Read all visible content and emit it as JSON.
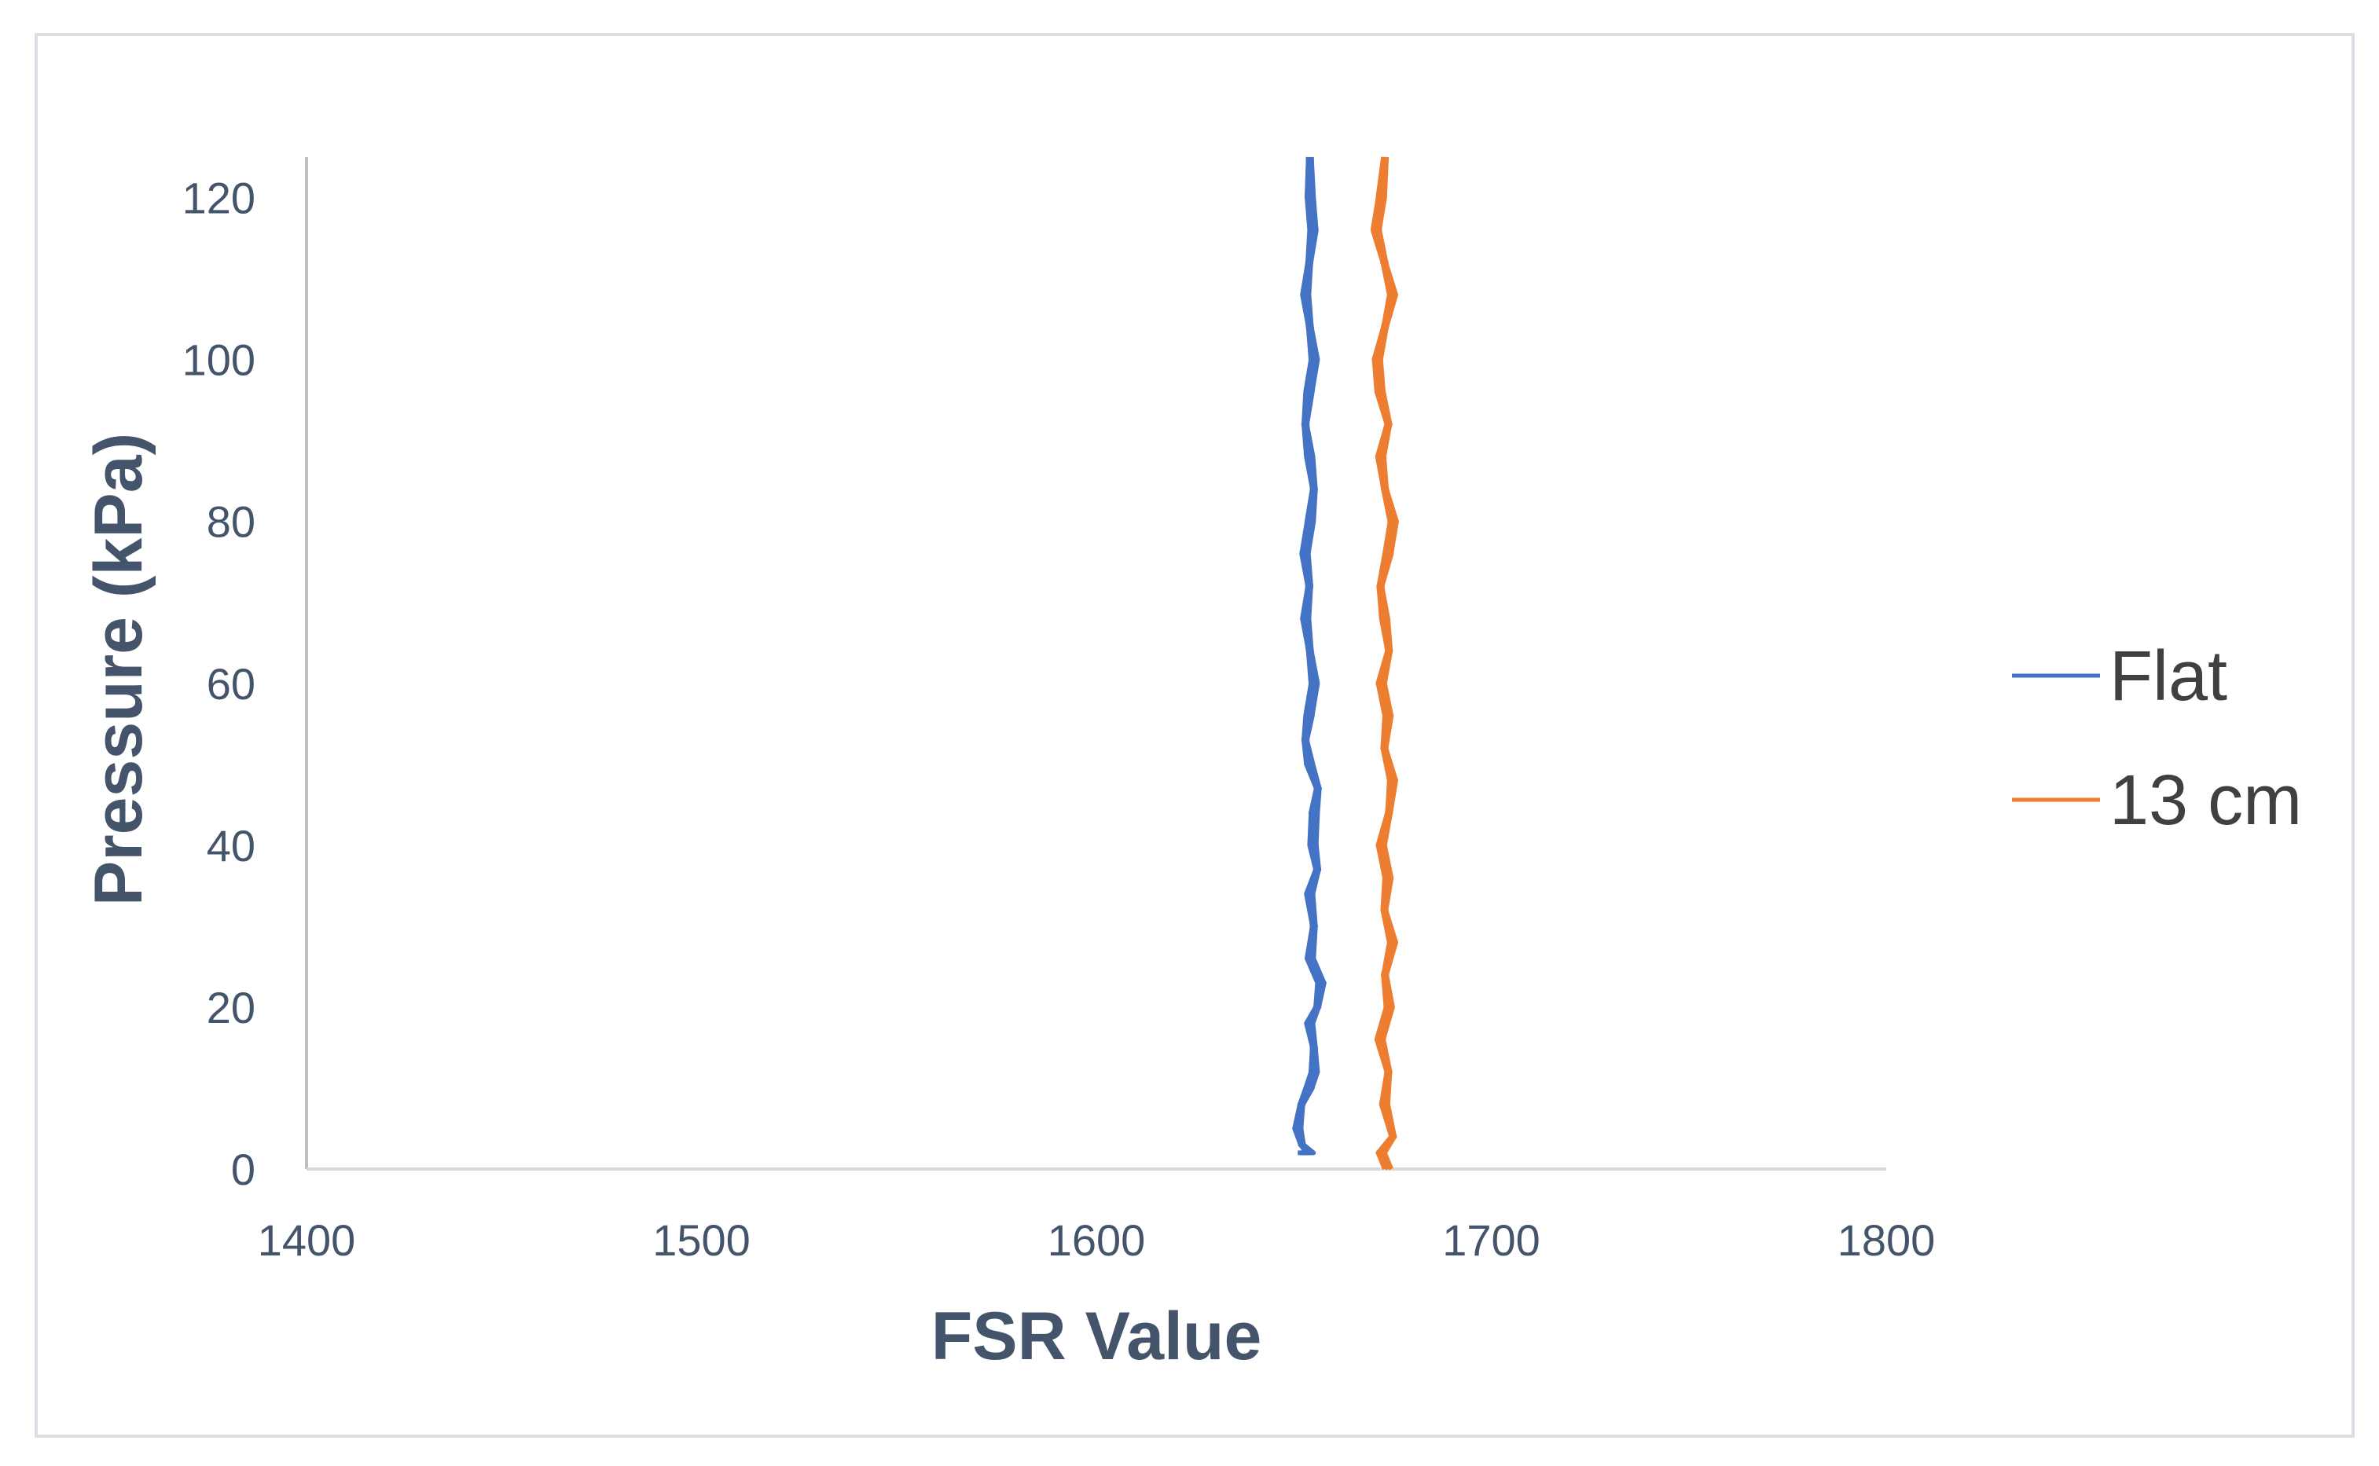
{
  "chart_data": {
    "type": "line",
    "title": "",
    "xlabel": "FSR Value",
    "ylabel": "Pressure (kPa)",
    "xlim": [
      1400,
      1800
    ],
    "ylim": [
      0,
      125
    ],
    "xticks": [
      1400,
      1500,
      1600,
      1700,
      1800
    ],
    "xtick_labels": [
      "1400",
      "1500",
      "1600",
      "1700",
      "1800"
    ],
    "yticks": [
      0,
      20,
      40,
      60,
      80,
      100,
      120
    ],
    "ytick_labels": [
      "0",
      "20",
      "40",
      "60",
      "80",
      "100",
      "120"
    ],
    "grid": false,
    "legend_position": "right",
    "series": [
      {
        "name": "Flat",
        "color": "#4472c4",
        "points": [
          [
            1652,
            2
          ],
          [
            1654,
            2
          ],
          [
            1652,
            3
          ],
          [
            1651,
            5
          ],
          [
            1652,
            8
          ],
          [
            1654,
            10
          ],
          [
            1655,
            12
          ],
          [
            1655,
            15
          ],
          [
            1654,
            18
          ],
          [
            1656,
            20
          ],
          [
            1657,
            23
          ],
          [
            1654,
            26
          ],
          [
            1655,
            30
          ],
          [
            1654,
            34
          ],
          [
            1656,
            37
          ],
          [
            1655,
            40
          ],
          [
            1655,
            44
          ],
          [
            1656,
            47
          ],
          [
            1654,
            50
          ],
          [
            1653,
            53
          ],
          [
            1654,
            56
          ],
          [
            1655,
            60
          ],
          [
            1654,
            64
          ],
          [
            1653,
            68
          ],
          [
            1654,
            72
          ],
          [
            1653,
            76
          ],
          [
            1654,
            80
          ],
          [
            1655,
            84
          ],
          [
            1654,
            88
          ],
          [
            1653,
            92
          ],
          [
            1654,
            96
          ],
          [
            1655,
            100
          ],
          [
            1654,
            104
          ],
          [
            1653,
            108
          ],
          [
            1654,
            112
          ],
          [
            1655,
            116
          ],
          [
            1654,
            120
          ],
          [
            1654,
            125
          ]
        ]
      },
      {
        "name": "13 cm",
        "color": "#ed7d31",
        "points": [
          [
            1674,
            0
          ],
          [
            1672,
            2
          ],
          [
            1675,
            4
          ],
          [
            1673,
            8
          ],
          [
            1674,
            12
          ],
          [
            1672,
            16
          ],
          [
            1674,
            20
          ],
          [
            1673,
            24
          ],
          [
            1675,
            28
          ],
          [
            1673,
            32
          ],
          [
            1674,
            36
          ],
          [
            1672,
            40
          ],
          [
            1674,
            44
          ],
          [
            1675,
            48
          ],
          [
            1673,
            52
          ],
          [
            1674,
            56
          ],
          [
            1672,
            60
          ],
          [
            1674,
            64
          ],
          [
            1673,
            68
          ],
          [
            1672,
            72
          ],
          [
            1674,
            76
          ],
          [
            1675,
            80
          ],
          [
            1673,
            84
          ],
          [
            1672,
            88
          ],
          [
            1674,
            92
          ],
          [
            1672,
            96
          ],
          [
            1671,
            100
          ],
          [
            1673,
            104
          ],
          [
            1675,
            108
          ],
          [
            1673,
            112
          ],
          [
            1671,
            116
          ],
          [
            1672,
            120
          ],
          [
            1673,
            125
          ]
        ]
      }
    ]
  }
}
